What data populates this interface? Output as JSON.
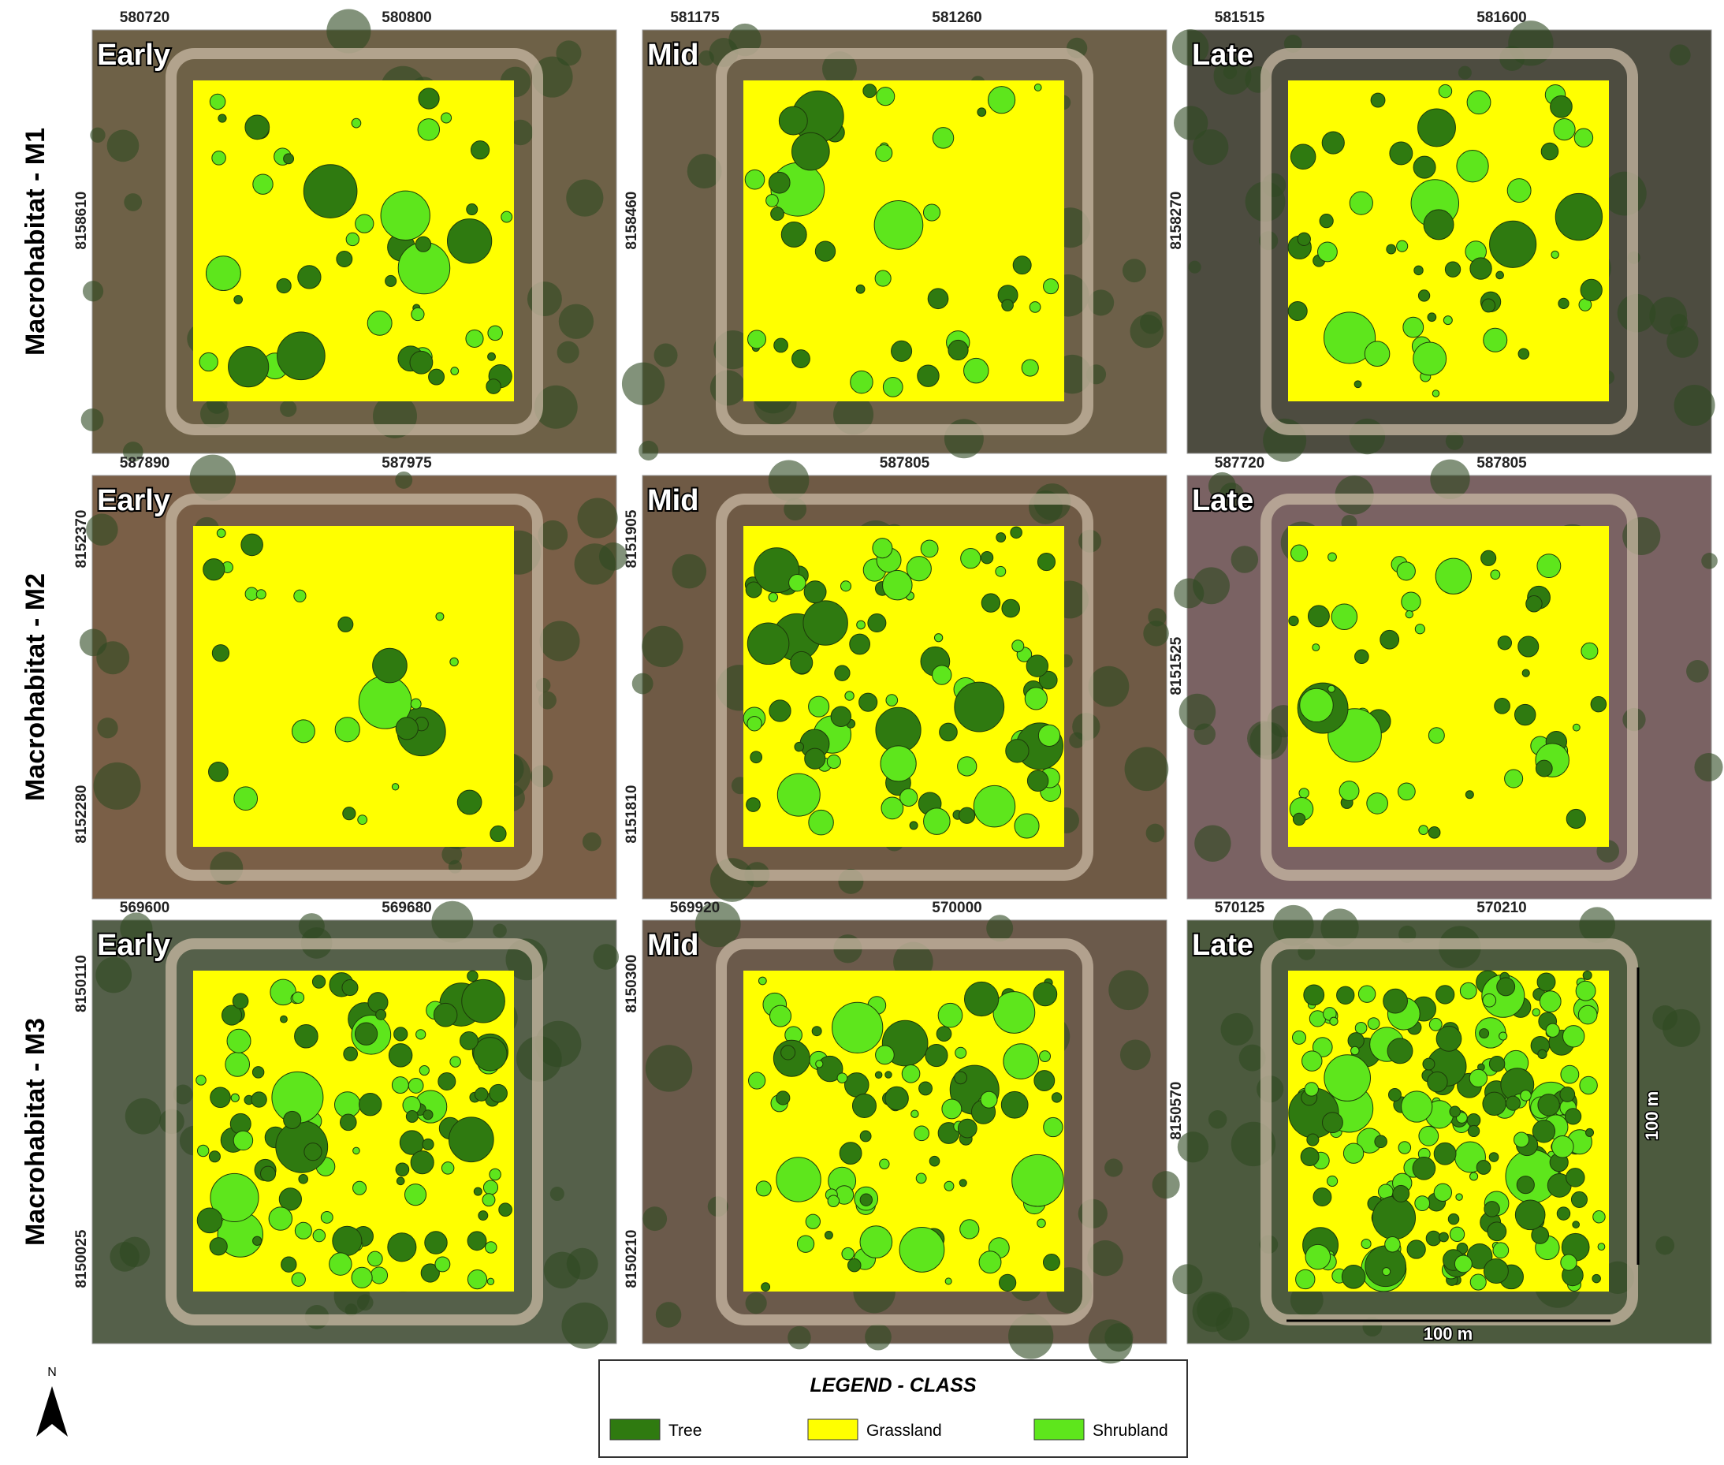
{
  "rows": [
    {
      "label": "Macrohabitat - M1",
      "panels": [
        {
          "stage": "Early",
          "x_ticks": [
            "580720",
            "580800"
          ],
          "y_ticks": [
            "8158610"
          ]
        },
        {
          "stage": "Mid",
          "x_ticks": [
            "581175",
            "581260"
          ],
          "y_ticks": [
            "8158460"
          ]
        },
        {
          "stage": "Late",
          "x_ticks": [
            "581515",
            "581600"
          ],
          "y_ticks": [
            "8158270"
          ]
        }
      ]
    },
    {
      "label": "Macrohabitat - M2",
      "panels": [
        {
          "stage": "Early",
          "x_ticks": [
            "587890",
            "587975"
          ],
          "y_ticks": [
            "8152370",
            "8152280"
          ]
        },
        {
          "stage": "Mid",
          "x_ticks": [
            "587805"
          ],
          "y_ticks": [
            "8151905",
            "8151810"
          ]
        },
        {
          "stage": "Late",
          "x_ticks": [
            "587720",
            "587805"
          ],
          "y_ticks": [
            "8151525"
          ]
        }
      ]
    },
    {
      "label": "Macrohabitat - M3",
      "panels": [
        {
          "stage": "Early",
          "x_ticks": [
            "569600",
            "569680"
          ],
          "y_ticks": [
            "8150110",
            "8150025"
          ]
        },
        {
          "stage": "Mid",
          "x_ticks": [
            "569920",
            "570000"
          ],
          "y_ticks": [
            "8150300",
            "8150210"
          ]
        },
        {
          "stage": "Late",
          "x_ticks": [
            "570125",
            "570210"
          ],
          "y_ticks": [
            "8150570"
          ]
        }
      ]
    }
  ],
  "scale_bar": {
    "horizontal": "100 m",
    "vertical": "100 m"
  },
  "north": "N",
  "legend": {
    "title": "LEGEND - CLASS",
    "items": [
      {
        "label": "Tree",
        "color": "#2f7a10"
      },
      {
        "label": "Grassland",
        "color": "#ffff00"
      },
      {
        "label": "Shrubland",
        "color": "#5ee61c"
      }
    ]
  }
}
